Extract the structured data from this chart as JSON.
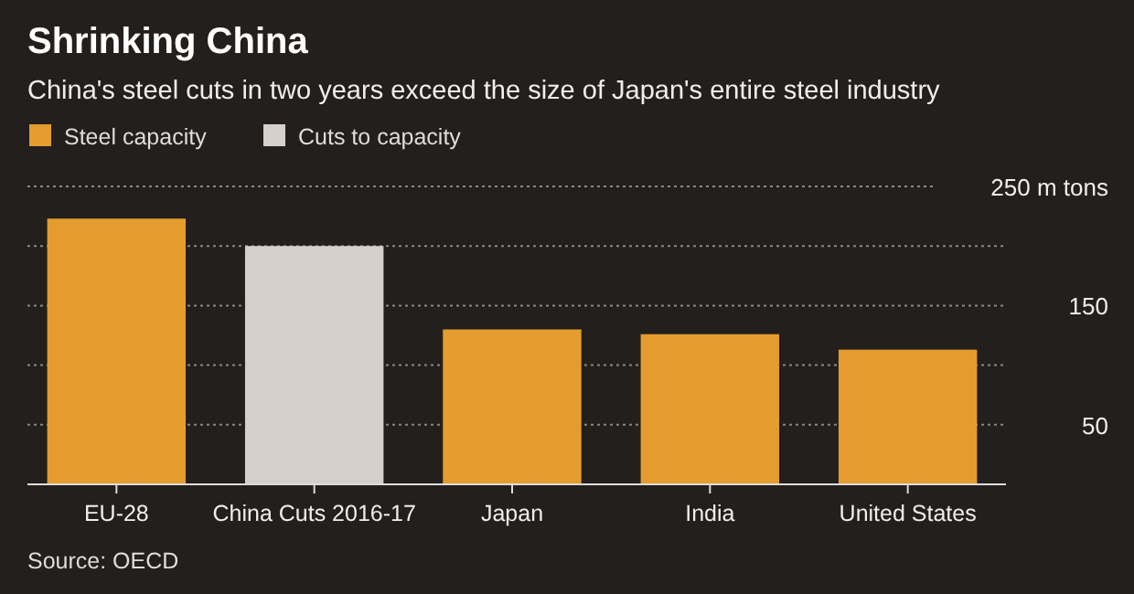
{
  "chart_data": {
    "type": "bar",
    "title": "Shrinking China",
    "subtitle": "China's steel cuts in two years exceed the size of Japan's entire steel industry",
    "categories": [
      "EU-28",
      "China Cuts 2016-17",
      "Japan",
      "India",
      "United States"
    ],
    "series": [
      {
        "name": "Steel capacity",
        "color": "#e59c2e",
        "values": [
          223,
          null,
          130,
          126,
          113
        ]
      },
      {
        "name": "Cuts to capacity",
        "color": "#d6d0cd",
        "values": [
          null,
          200,
          null,
          null,
          null
        ]
      }
    ],
    "ylim": [
      0,
      250
    ],
    "yticks": [
      {
        "value": 50,
        "label": "50"
      },
      {
        "value": 100,
        "label": null
      },
      {
        "value": 150,
        "label": "150"
      },
      {
        "value": 200,
        "label": null
      },
      {
        "value": 250,
        "label": "250 m tons"
      }
    ],
    "grid": "y",
    "legend": "top left",
    "annotations": [
      "Source: OECD"
    ]
  }
}
